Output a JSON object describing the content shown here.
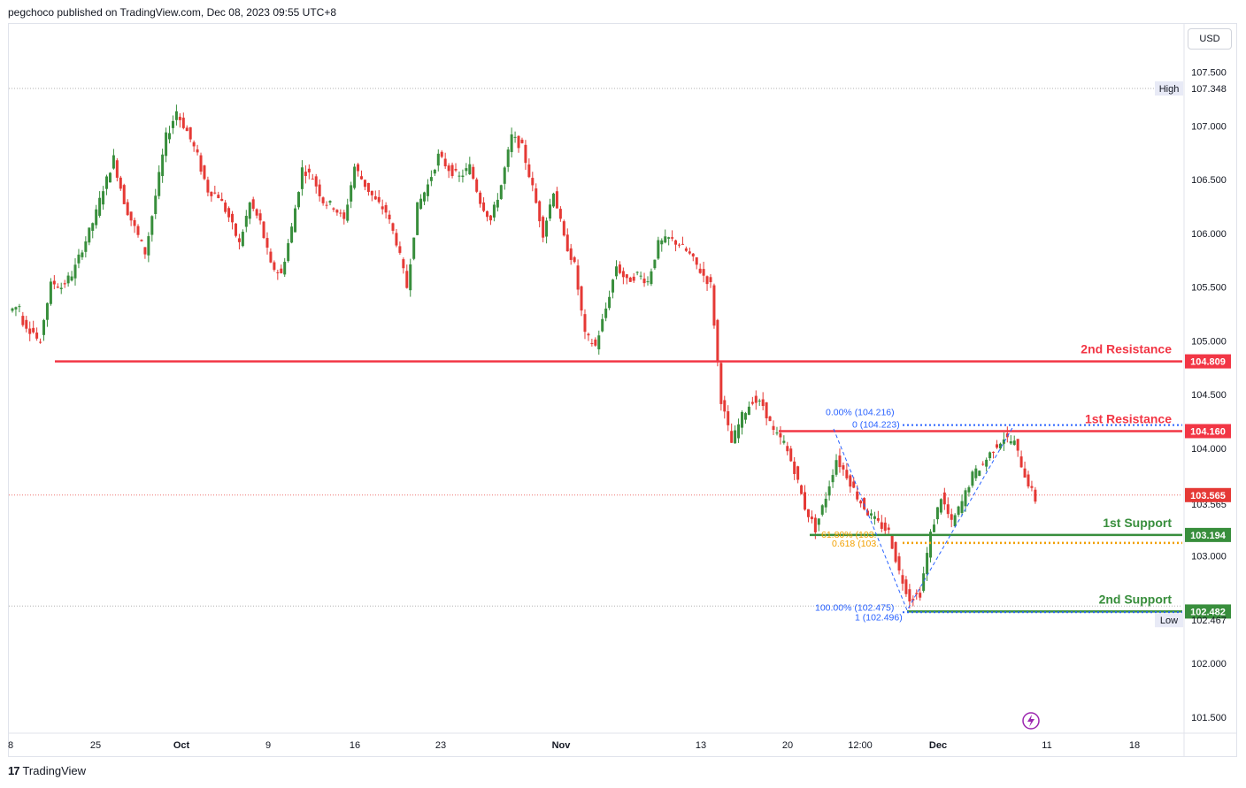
{
  "header": {
    "published": "pegchoco published on TradingView.com, Dec 08, 2023 09:55 UTC+8"
  },
  "footer": {
    "logo_text": "TradingView",
    "logo_mark": "17"
  },
  "currency": "USD",
  "colors": {
    "bull": "#26a69a",
    "bull_body": "#388e3c",
    "bear": "#e53935",
    "resistance": "#f23645",
    "support": "#388e3c",
    "fib_blue": "#2962ff",
    "fib_orange": "#f2a000",
    "dotted_ref": "#b0b0b0",
    "lightning": "#9c27b0"
  },
  "chart_data": {
    "type": "candlestick",
    "symbol_unit": "USD",
    "ylim": [
      101.3,
      107.9
    ],
    "y_ticks": [
      "107.500",
      "107.000",
      "106.500",
      "106.000",
      "105.500",
      "105.000",
      "104.500",
      "104.000",
      "103.000",
      "102.000",
      "101.500"
    ],
    "x_ticks": [
      "8",
      "25",
      "Oct",
      "9",
      "16",
      "23",
      "Nov",
      "13",
      "20",
      "12:00",
      "Dec",
      "11",
      "18"
    ],
    "high": {
      "label": "High",
      "value": "107.348"
    },
    "low": {
      "label": "Low",
      "value": "102.467"
    },
    "current_price": "103.565",
    "current_price_under": "103.565",
    "levels": [
      {
        "name": "2nd Resistance",
        "value": 104.809,
        "value_label": "104.809",
        "kind": "resistance"
      },
      {
        "name": "1st Resistance",
        "value": 104.16,
        "value_label": "104.160",
        "kind": "resistance"
      },
      {
        "name": "1st Support",
        "value": 103.194,
        "value_label": "103.194",
        "kind": "support"
      },
      {
        "name": "2nd Support",
        "value": 102.482,
        "value_label": "102.482",
        "kind": "support"
      }
    ],
    "fib_labels": {
      "top_pct": "0.00% (104.216)",
      "top_ratio": "0 (104.223)",
      "mid_pct": "61.80% (103.",
      "mid_ratio": "0.618 (103.",
      "bottom_pct": "100.00% (102.475)",
      "bottom_ratio": "1 (102.496)"
    },
    "price_path": [
      [
        105.28,
        105.33
      ],
      [
        105.22,
        105.1
      ],
      [
        105.15,
        104.95
      ],
      [
        105.05,
        105.52
      ],
      [
        105.55,
        105.5
      ],
      [
        105.5,
        105.62
      ],
      [
        105.6,
        105.86
      ],
      [
        105.85,
        106.1
      ],
      [
        106.08,
        106.42
      ],
      [
        106.4,
        106.7
      ],
      [
        106.68,
        106.3
      ],
      [
        106.28,
        106.05
      ],
      [
        106.05,
        105.82
      ],
      [
        105.8,
        106.35
      ],
      [
        106.35,
        106.9
      ],
      [
        106.88,
        107.14
      ],
      [
        107.12,
        106.95
      ],
      [
        106.95,
        106.72
      ],
      [
        106.7,
        106.4
      ],
      [
        106.4,
        106.35
      ],
      [
        106.35,
        106.15
      ],
      [
        106.15,
        105.9
      ],
      [
        105.9,
        106.28
      ],
      [
        106.28,
        106.1
      ],
      [
        106.1,
        105.7
      ],
      [
        105.7,
        105.62
      ],
      [
        105.62,
        106.05
      ],
      [
        106.05,
        106.6
      ],
      [
        106.6,
        106.52
      ],
      [
        106.52,
        106.3
      ],
      [
        106.3,
        106.25
      ],
      [
        106.25,
        106.12
      ],
      [
        106.12,
        106.62
      ],
      [
        106.62,
        106.45
      ],
      [
        106.45,
        106.3
      ],
      [
        106.3,
        106.2
      ],
      [
        106.2,
        105.92
      ],
      [
        105.92,
        105.5
      ],
      [
        105.5,
        106.25
      ],
      [
        106.25,
        106.45
      ],
      [
        106.45,
        106.72
      ],
      [
        106.72,
        106.6
      ],
      [
        106.6,
        106.52
      ],
      [
        106.52,
        106.62
      ],
      [
        106.62,
        106.3
      ],
      [
        106.3,
        106.12
      ],
      [
        106.12,
        106.45
      ],
      [
        106.45,
        106.9
      ],
      [
        106.9,
        106.8
      ],
      [
        106.8,
        106.42
      ],
      [
        106.42,
        106.0
      ],
      [
        106.0,
        106.4
      ],
      [
        106.4,
        105.95
      ],
      [
        105.95,
        105.7
      ],
      [
        105.7,
        105.05
      ],
      [
        105.05,
        104.95
      ],
      [
        104.95,
        105.3
      ],
      [
        105.3,
        105.7
      ],
      [
        105.7,
        105.55
      ],
      [
        105.55,
        105.62
      ],
      [
        105.62,
        105.55
      ],
      [
        105.55,
        105.9
      ],
      [
        105.9,
        105.95
      ],
      [
        105.95,
        105.9
      ],
      [
        105.9,
        105.8
      ],
      [
        105.8,
        105.65
      ],
      [
        105.65,
        105.52
      ],
      [
        105.52,
        104.45
      ],
      [
        104.45,
        104.05
      ],
      [
        104.05,
        104.3
      ],
      [
        104.3,
        104.45
      ],
      [
        104.45,
        104.4
      ],
      [
        104.4,
        104.15
      ],
      [
        104.15,
        104.05
      ],
      [
        104.05,
        103.8
      ],
      [
        103.8,
        103.45
      ],
      [
        103.45,
        103.25
      ],
      [
        103.25,
        103.55
      ],
      [
        103.55,
        103.9
      ],
      [
        103.9,
        103.75
      ],
      [
        103.75,
        103.55
      ],
      [
        103.55,
        103.4
      ],
      [
        103.4,
        103.3
      ],
      [
        103.3,
        103.22
      ],
      [
        103.22,
        102.85
      ],
      [
        102.85,
        102.6
      ],
      [
        102.6,
        102.65
      ],
      [
        102.65,
        103.2
      ],
      [
        103.2,
        103.55
      ],
      [
        103.55,
        103.3
      ],
      [
        103.3,
        103.5
      ],
      [
        103.5,
        103.75
      ],
      [
        103.75,
        103.85
      ],
      [
        103.85,
        104.0
      ],
      [
        104.0,
        104.1
      ],
      [
        104.1,
        104.05
      ],
      [
        104.05,
        103.75
      ],
      [
        103.75,
        103.52
      ]
    ]
  }
}
